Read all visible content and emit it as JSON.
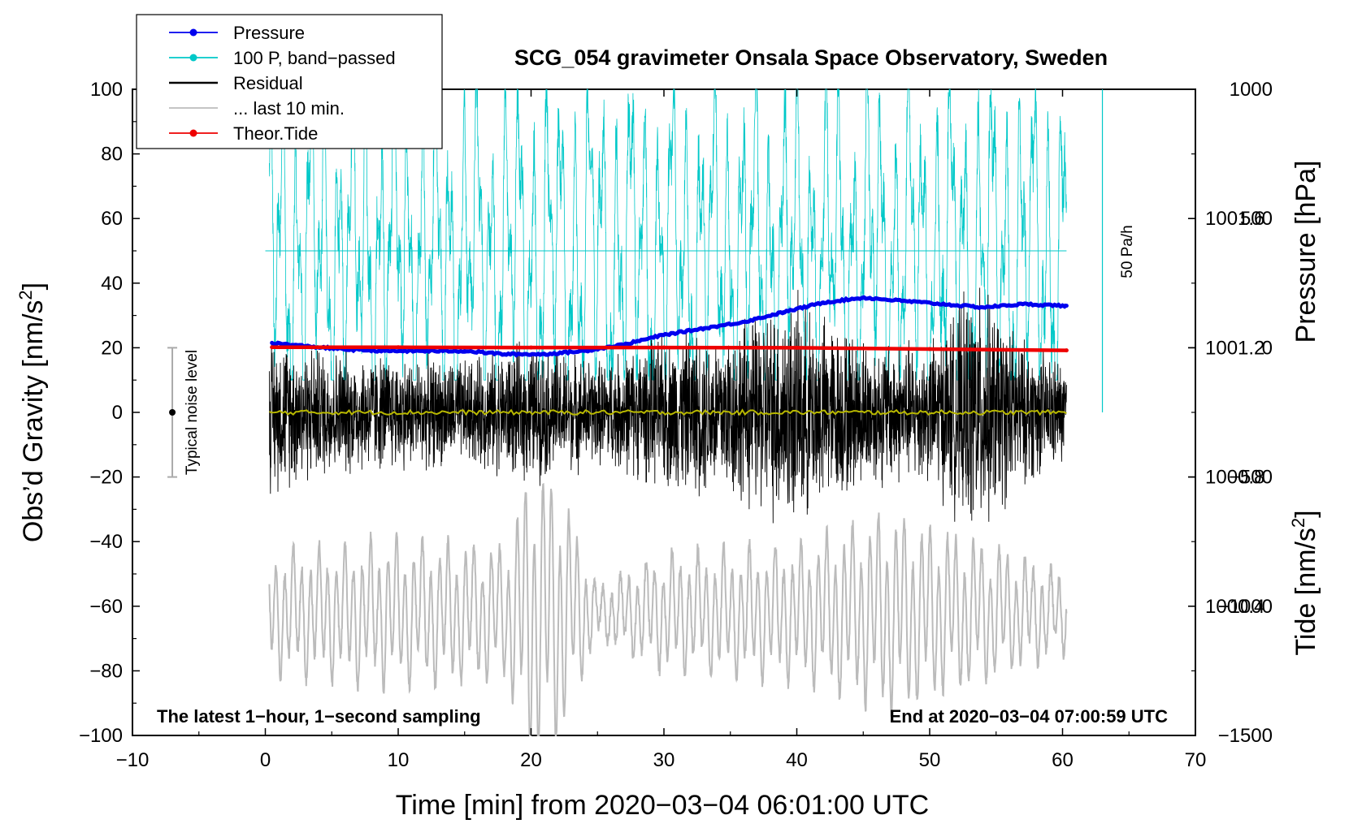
{
  "chart_data": {
    "type": "line",
    "title": "SCG_054 gravimeter Onsala Space Observatory, Sweden",
    "xlabel": "Time [min] from 2020−03−04 06:01:00 UTC",
    "ylabel_left_main": "Obs’d Gravity [nm/s",
    "ylabel_left_sup": "2",
    "ylabel_left_close": "]",
    "ylabel_right_pressure": "Pressure [hPa]",
    "ylabel_right_tide_main": "Tide [nm/s",
    "ylabel_right_tide_sup": "2",
    "ylabel_right_tide_close": "]",
    "xlim": [
      -10,
      70
    ],
    "ylim": [
      -100,
      100
    ],
    "x_ticks": [
      "−10",
      "0",
      "10",
      "20",
      "30",
      "40",
      "50",
      "60",
      "70"
    ],
    "x_tick_values": [
      -10,
      0,
      10,
      20,
      30,
      40,
      50,
      60,
      70
    ],
    "y_ticks": [
      "−100",
      "−80",
      "−60",
      "−40",
      "−20",
      "0",
      "20",
      "40",
      "60",
      "80",
      "100"
    ],
    "y_tick_values": [
      -100,
      -80,
      -60,
      -40,
      -20,
      0,
      20,
      40,
      60,
      80,
      100
    ],
    "pressure_axis": {
      "label": "Pressure [hPa]",
      "ticks": [
        "1000.4",
        "1000.8",
        "1001.2",
        "1001.6"
      ],
      "tick_values": [
        1000.4,
        1000.8,
        1001.2,
        1001.6
      ],
      "range": [
        1000.0,
        1002.0
      ]
    },
    "tide_axis": {
      "ticks": [
        "−1500",
        "−1000",
        "−500",
        "0",
        "500",
        "1000"
      ],
      "tick_values": [
        -1500,
        -1000,
        -500,
        0,
        500,
        1000
      ],
      "range": [
        -1500,
        1000
      ]
    },
    "legend": {
      "placement": "top-left",
      "entries": [
        {
          "label": "Pressure",
          "color": "#0000ee",
          "marker": true
        },
        {
          "label": "100 P, band−passed",
          "color": "#00c8c8",
          "marker": true
        },
        {
          "label": "Residual",
          "color": "#000000",
          "marker": false
        },
        {
          "label": "... last 10 min.",
          "color": "#bbbbbb",
          "marker": false
        },
        {
          "label": "Theor.Tide",
          "color": "#ee0000",
          "marker": true
        }
      ]
    },
    "annotations": {
      "noise_label": "Typical noise level",
      "noise_range": [
        -20,
        20
      ],
      "noise_x": -7,
      "rate_label": "50 Pa/h",
      "bottom_left": "The latest 1−hour, 1−second sampling",
      "bottom_right": "End at 2020−03−04 07:00:59 UTC"
    },
    "series": [
      {
        "name": "Pressure",
        "axis": "pressure",
        "color": "#0000ee",
        "x": [
          0.5,
          3,
          6,
          9,
          12,
          15,
          18,
          21,
          24,
          27,
          30,
          33,
          36,
          39,
          42,
          45,
          48,
          51,
          54,
          57,
          60.3
        ],
        "values": [
          1001.215,
          1001.205,
          1001.195,
          1001.19,
          1001.19,
          1001.19,
          1001.18,
          1001.18,
          1001.19,
          1001.21,
          1001.24,
          1001.26,
          1001.28,
          1001.31,
          1001.34,
          1001.355,
          1001.345,
          1001.335,
          1001.325,
          1001.335,
          1001.33
        ]
      },
      {
        "name": "100 P, band−passed",
        "axis": "gravity",
        "color": "#00c8c8",
        "baseline": 50,
        "x_range": [
          0.3,
          60.3
        ],
        "description_range": [
          10,
          100
        ]
      },
      {
        "name": "Residual",
        "axis": "gravity",
        "color": "#000000",
        "x_range": [
          0.3,
          60.3
        ],
        "envelope_x": [
          0,
          5,
          10,
          15,
          20,
          25,
          30,
          35,
          39.5,
          41.5,
          45,
          50,
          53.5,
          57,
          60
        ],
        "envelope_amplitude": [
          27,
          22,
          20,
          18,
          24,
          18,
          26,
          30,
          40,
          34,
          26,
          24,
          44,
          25,
          18
        ]
      },
      {
        "name": "Residual smoothed",
        "axis": "gravity",
        "color": "#b8b800",
        "x_range": [
          0.3,
          60.3
        ],
        "values_approx": 0
      },
      {
        "name": "... last 10 min.",
        "axis": "gravity",
        "color": "#bbbbbb",
        "center": -62,
        "x_range": [
          0.3,
          60.3
        ],
        "envelope_x": [
          0,
          10,
          18,
          20,
          22,
          25,
          30,
          40,
          47,
          55,
          60
        ],
        "envelope_amplitude": [
          18,
          22,
          20,
          45,
          40,
          8,
          18,
          20,
          30,
          20,
          12
        ]
      },
      {
        "name": "Theor.Tide",
        "axis": "tide",
        "color": "#ee0000",
        "x": [
          0.5,
          10,
          20,
          30,
          40,
          50,
          60.3
        ],
        "values": [
          2,
          2,
          1,
          1,
          0,
          -5,
          -10
        ]
      }
    ]
  }
}
